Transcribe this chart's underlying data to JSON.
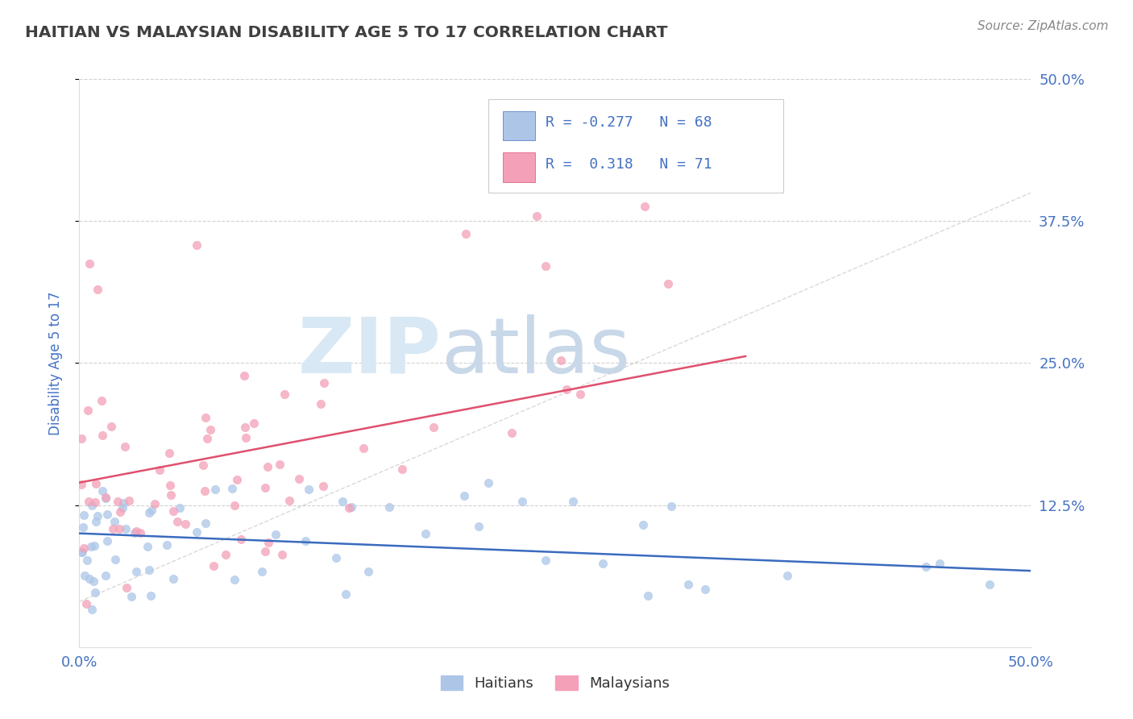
{
  "title": "HAITIAN VS MALAYSIAN DISABILITY AGE 5 TO 17 CORRELATION CHART",
  "source": "Source: ZipAtlas.com",
  "ylabel": "Disability Age 5 to 17",
  "xmin": 0.0,
  "xmax": 0.5,
  "ymin": 0.0,
  "ymax": 0.5,
  "haitian_R": -0.277,
  "haitian_N": 68,
  "malaysian_R": 0.318,
  "malaysian_N": 71,
  "haitian_color": "#adc6e8",
  "malaysian_color": "#f4a0b8",
  "haitian_trend_color": "#3a6bbf",
  "malaysian_trend_color": "#e0506e",
  "ref_line_color": "#d0d0d0",
  "grid_color": "#cccccc",
  "title_color": "#404040",
  "tick_label_color": "#4472c4",
  "watermark_zip_color": "#d8e8f4",
  "watermark_atlas_color": "#c8d8e8",
  "background_color": "#ffffff",
  "legend_edge_color": "#cccccc",
  "source_color": "#888888"
}
